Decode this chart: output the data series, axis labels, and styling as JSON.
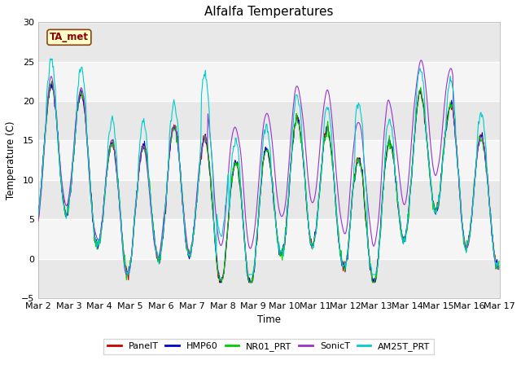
{
  "title": "Alfalfa Temperatures",
  "xlabel": "Time",
  "ylabel": "Temperature (C)",
  "ylim": [
    -5,
    30
  ],
  "annotation_text": "TA_met",
  "series": {
    "PanelT": {
      "color": "#cc0000",
      "linewidth": 0.8
    },
    "HMP60": {
      "color": "#0000cc",
      "linewidth": 0.8
    },
    "NR01_PRT": {
      "color": "#00cc00",
      "linewidth": 0.8
    },
    "SonicT": {
      "color": "#9933cc",
      "linewidth": 0.8
    },
    "AM25T_PRT": {
      "color": "#00cccc",
      "linewidth": 0.8
    }
  },
  "legend_order": [
    "PanelT",
    "HMP60",
    "NR01_PRT",
    "SonicT",
    "AM25T_PRT"
  ],
  "xtick_labels": [
    "Mar 2",
    "Mar 3",
    "Mar 4",
    "Mar 5",
    "Mar 6",
    "Mar 7",
    "Mar 8",
    "Mar 9",
    "Mar 10",
    "Mar 11",
    "Mar 12",
    "Mar 13",
    "Mar 14",
    "Mar 15",
    "Mar 16",
    "Mar 17"
  ]
}
